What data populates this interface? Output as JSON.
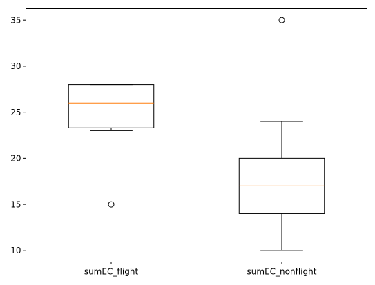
{
  "chart_data": {
    "type": "box",
    "title": "",
    "xlabel": "",
    "ylabel": "",
    "categories": [
      "sumEC_flight",
      "sumEC_nonflight"
    ],
    "boxes": [
      {
        "name": "sumEC_flight",
        "q1": 23.3,
        "median": 26.0,
        "q3": 28.0,
        "whisker_low": 23.0,
        "whisker_high": 28.0,
        "outliers": [
          15
        ]
      },
      {
        "name": "sumEC_nonflight",
        "q1": 14.0,
        "median": 17.0,
        "q3": 20.0,
        "whisker_low": 10.0,
        "whisker_high": 24.0,
        "outliers": [
          35
        ]
      }
    ],
    "ylim": [
      8.75,
      36.25
    ],
    "yticks": [
      10,
      15,
      20,
      25,
      30,
      35
    ],
    "grid": false,
    "colors": {
      "box": "#000000",
      "median": "#ff7f0e",
      "outlier": "#000000"
    }
  }
}
